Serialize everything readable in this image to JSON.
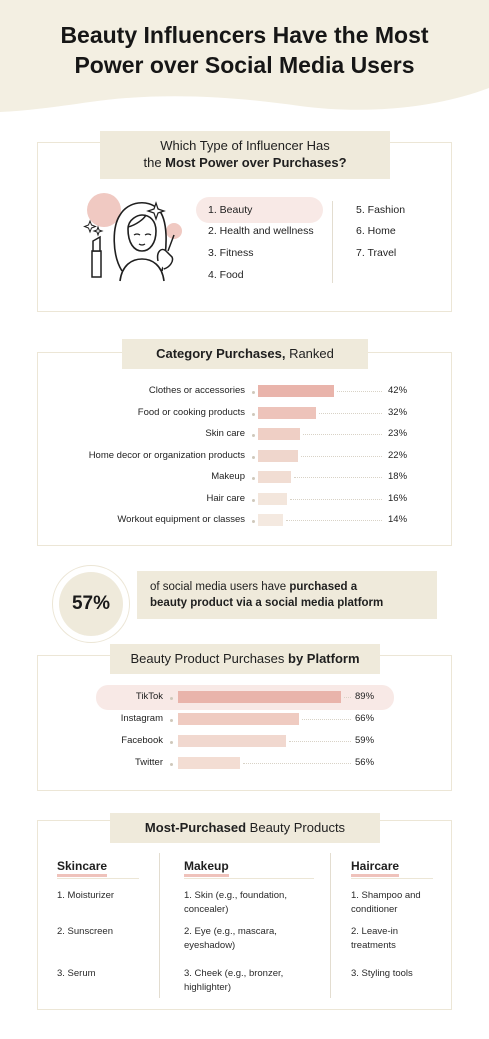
{
  "title_line1": "Beauty Influencers Have the Most",
  "title_line2": "Power over Social Media Users",
  "influencers": {
    "title_line1": "Which Type of Influencer Has",
    "title_line2_prefix": "the ",
    "title_line2_bold": "Most Power over Purchases?",
    "items": [
      "1. Beauty",
      "2. Health and wellness",
      "3. Fitness",
      "4. Food",
      "5. Fashion",
      "6. Home",
      "7. Travel"
    ]
  },
  "categories": {
    "title_bold": "Category Purchases,",
    "title_rest": " Ranked",
    "bar_colors": [
      "#e9b4ab",
      "#edc3ba",
      "#efcfc5",
      "#efd6cc",
      "#f1ddd3",
      "#f3e6dc",
      "#f4e9e0"
    ],
    "chart_data": {
      "type": "bar",
      "orientation": "horizontal",
      "categories": [
        "Clothes or accessories",
        "Food or cooking products",
        "Skin care",
        "Home decor or organization products",
        "Makeup",
        "Hair care",
        "Workout equipment or classes"
      ],
      "values": [
        42,
        32,
        23,
        22,
        18,
        16,
        14
      ],
      "value_labels": [
        "42%",
        "32%",
        "23%",
        "22%",
        "18%",
        "16%",
        "14%"
      ]
    }
  },
  "stat": {
    "value": "57%",
    "text_line1_plain": "of social media users have ",
    "text_line1_bold": "purchased a",
    "text_line2_bold": "beauty product via a social media platform"
  },
  "platforms": {
    "title_plain": "Beauty Product Purchases ",
    "title_bold": "by Platform",
    "bar_colors": [
      "#e9b4ab",
      "#efcbc1",
      "#f1d8cf",
      "#f3ddd3"
    ],
    "chart_data": {
      "type": "bar",
      "orientation": "horizontal",
      "categories": [
        "TikTok",
        "Instagram",
        "Facebook",
        "Twitter"
      ],
      "values": [
        89,
        66,
        59,
        56
      ],
      "value_labels": [
        "89%",
        "66%",
        "59%",
        "56%"
      ]
    }
  },
  "products": {
    "title_bold": "Most-Purchased",
    "title_rest": " Beauty Products",
    "columns": [
      {
        "heading": "Skincare",
        "items": [
          [
            "1. Moisturizer"
          ],
          [
            "2. Sunscreen"
          ],
          [
            "3. Serum"
          ]
        ]
      },
      {
        "heading": "Makeup",
        "items": [
          [
            "1. Skin (e.g., foundation,",
            "concealer)"
          ],
          [
            "2. Eye (e.g., mascara,",
            "eyeshadow)"
          ],
          [
            "3. Cheek (e.g., bronzer,",
            "highlighter)"
          ]
        ]
      },
      {
        "heading": "Haircare",
        "items": [
          [
            "1. Shampoo and",
            "conditioner"
          ],
          [
            "2. Leave-in",
            "treatments"
          ],
          [
            "3. Styling tools"
          ]
        ]
      }
    ]
  },
  "colors": {
    "cream": "#efeadb",
    "header_cream": "#f3efe2",
    "highlight_pink": "#f8e9e6",
    "accent_pink": "#e9b4ab"
  }
}
